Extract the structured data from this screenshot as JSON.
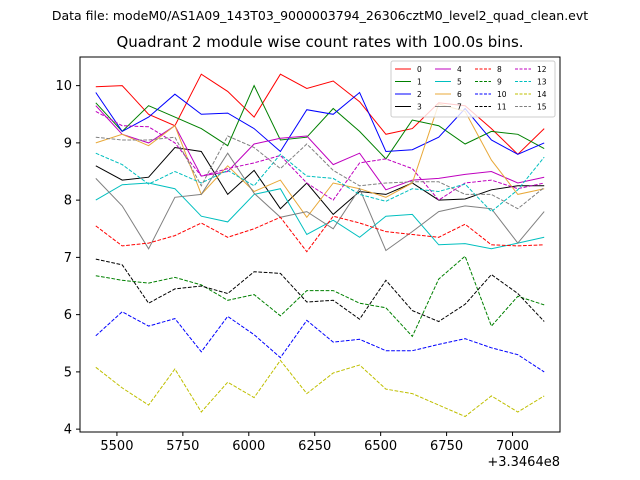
{
  "suptitle": "Data file: modeM0/AS1A09_143T03_9000003794_26306cztM0_level2_quad_clean.evt",
  "chart_data": {
    "type": "line",
    "title": "Quadrant 2 module wise count rates with 100.0s bins.",
    "xlabel": "",
    "ylabel": "",
    "x_offset_label": "+3.3464e8",
    "x": [
      5420,
      5520,
      5620,
      5720,
      5820,
      5920,
      6020,
      6120,
      6220,
      6320,
      6420,
      6520,
      6620,
      6720,
      6820,
      6920,
      7020,
      7120
    ],
    "xlim": [
      5360,
      7180
    ],
    "ylim": [
      3.95,
      10.5
    ],
    "x_ticks": [
      5500,
      5750,
      6000,
      6250,
      6500,
      6750,
      7000
    ],
    "x_tick_labels": [
      "5500",
      "5750",
      "6000",
      "6250",
      "6500",
      "6750",
      "7000"
    ],
    "y_ticks": [
      4,
      5,
      6,
      7,
      8,
      9,
      10
    ],
    "y_tick_labels": [
      "4",
      "5",
      "6",
      "7",
      "8",
      "9",
      "10"
    ],
    "grid": false,
    "legend_position": "top-right",
    "series": [
      {
        "name": "0",
        "color": "#ff0000",
        "dash": "solid",
        "values": [
          9.98,
          10.0,
          9.5,
          9.3,
          10.2,
          9.9,
          9.45,
          10.2,
          9.95,
          10.08,
          9.72,
          9.15,
          9.25,
          9.7,
          9.65,
          9.25,
          8.8,
          9.25
        ]
      },
      {
        "name": "1",
        "color": "#008000",
        "dash": "solid",
        "values": [
          9.7,
          9.2,
          9.65,
          9.45,
          9.25,
          8.95,
          10.0,
          9.05,
          9.1,
          9.6,
          9.2,
          8.72,
          9.4,
          9.3,
          8.98,
          9.2,
          9.15,
          8.9
        ]
      },
      {
        "name": "2",
        "color": "#0000ff",
        "dash": "solid",
        "values": [
          9.88,
          9.2,
          9.45,
          9.85,
          9.5,
          9.52,
          9.25,
          8.85,
          9.58,
          9.5,
          9.88,
          8.85,
          8.88,
          9.1,
          9.6,
          9.05,
          8.8,
          9.0
        ]
      },
      {
        "name": "3",
        "color": "#000000",
        "dash": "solid",
        "values": [
          8.6,
          8.35,
          8.4,
          8.92,
          8.85,
          8.1,
          8.52,
          7.85,
          8.3,
          7.75,
          8.15,
          8.1,
          8.3,
          8.0,
          8.02,
          8.18,
          8.25,
          8.25
        ]
      },
      {
        "name": "4",
        "color": "#bf00bf",
        "dash": "solid",
        "values": [
          9.65,
          9.15,
          9.0,
          9.3,
          8.42,
          8.5,
          8.98,
          9.08,
          9.12,
          8.62,
          8.82,
          8.18,
          8.35,
          8.38,
          8.45,
          8.5,
          8.3,
          8.4
        ]
      },
      {
        "name": "5",
        "color": "#00bfbf",
        "dash": "solid",
        "values": [
          8.0,
          8.27,
          8.3,
          8.2,
          7.72,
          7.62,
          8.1,
          8.2,
          7.4,
          7.65,
          7.35,
          7.72,
          7.75,
          7.22,
          7.24,
          7.15,
          7.25,
          7.35
        ]
      },
      {
        "name": "6",
        "color": "#e8a838",
        "dash": "solid",
        "values": [
          9.0,
          9.15,
          8.95,
          9.3,
          8.1,
          8.6,
          8.15,
          8.35,
          7.7,
          8.3,
          8.2,
          8.05,
          8.3,
          9.68,
          9.55,
          8.7,
          8.1,
          8.2
        ]
      },
      {
        "name": "7",
        "color": "#808080",
        "dash": "solid",
        "values": [
          8.38,
          7.9,
          7.15,
          8.05,
          8.1,
          8.82,
          8.12,
          7.7,
          7.8,
          7.5,
          8.2,
          7.12,
          7.45,
          7.8,
          7.9,
          7.85,
          7.25,
          7.8
        ]
      },
      {
        "name": "8",
        "color": "#ff0000",
        "dash": "dashed",
        "values": [
          7.55,
          7.2,
          7.25,
          7.38,
          7.6,
          7.35,
          7.5,
          7.7,
          7.1,
          7.72,
          7.6,
          7.45,
          7.4,
          7.35,
          7.58,
          7.22,
          7.2,
          7.22
        ]
      },
      {
        "name": "9",
        "color": "#008000",
        "dash": "dashed",
        "values": [
          6.68,
          6.6,
          6.55,
          6.65,
          6.52,
          6.25,
          6.35,
          5.98,
          6.42,
          6.42,
          6.2,
          6.12,
          5.62,
          6.62,
          7.02,
          5.8,
          6.32,
          6.17
        ]
      },
      {
        "name": "10",
        "color": "#0000ff",
        "dash": "dashed",
        "values": [
          5.63,
          6.05,
          5.8,
          5.93,
          5.35,
          5.97,
          5.65,
          5.25,
          5.9,
          5.52,
          5.57,
          5.37,
          5.37,
          5.48,
          5.58,
          5.42,
          5.3,
          5.0
        ]
      },
      {
        "name": "11",
        "color": "#000000",
        "dash": "dashed",
        "values": [
          6.97,
          6.87,
          6.2,
          6.45,
          6.5,
          6.37,
          6.75,
          6.72,
          6.22,
          6.25,
          5.92,
          6.6,
          6.07,
          5.88,
          6.18,
          6.7,
          6.37,
          5.88
        ]
      },
      {
        "name": "12",
        "color": "#bf00bf",
        "dash": "dashed",
        "values": [
          9.55,
          9.3,
          9.28,
          9.0,
          8.42,
          8.55,
          8.65,
          8.78,
          8.3,
          8.0,
          8.65,
          8.72,
          8.55,
          8.0,
          8.3,
          8.35,
          8.2,
          8.3
        ]
      },
      {
        "name": "13",
        "color": "#00bfbf",
        "dash": "dashed",
        "values": [
          8.82,
          8.62,
          8.28,
          8.5,
          8.3,
          8.52,
          8.25,
          8.8,
          8.42,
          8.38,
          8.1,
          7.98,
          8.2,
          8.15,
          8.28,
          7.8,
          8.18,
          8.75
        ]
      },
      {
        "name": "14",
        "color": "#bfbf00",
        "dash": "dashed",
        "values": [
          5.08,
          4.72,
          4.42,
          5.05,
          4.3,
          4.82,
          4.55,
          5.2,
          4.62,
          4.98,
          5.12,
          4.7,
          4.62,
          4.42,
          4.22,
          4.58,
          4.3,
          4.58
        ]
      },
      {
        "name": "15",
        "color": "#808080",
        "dash": "dashed",
        "values": [
          9.1,
          9.05,
          9.05,
          9.1,
          8.25,
          9.12,
          8.92,
          8.55,
          8.98,
          8.52,
          8.25,
          8.3,
          8.32,
          8.32,
          8.1,
          8.1,
          7.85,
          8.22
        ]
      }
    ]
  }
}
